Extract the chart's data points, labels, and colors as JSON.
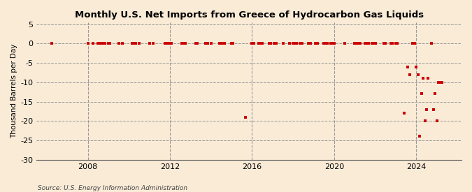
{
  "title": "Monthly U.S. Net Imports from Greece of Hydrocarbon Gas Liquids",
  "ylabel": "Thousand Barrels per Day",
  "source": "Source: U.S. Energy Information Administration",
  "background_color": "#faebd7",
  "plot_bg_color": "#faebd7",
  "marker_color": "#cc0000",
  "ylim": [
    -30,
    5
  ],
  "yticks": [
    5,
    0,
    -5,
    -10,
    -15,
    -20,
    -25,
    -30
  ],
  "xlim_start": 2005.5,
  "xlim_end": 2026.2,
  "xticks": [
    2008,
    2012,
    2016,
    2020,
    2024
  ],
  "vlines": [
    2008,
    2012,
    2016,
    2020,
    2024
  ],
  "data_points": [
    [
      2006.25,
      0
    ],
    [
      2008.0,
      0
    ],
    [
      2008.25,
      0
    ],
    [
      2008.5,
      0
    ],
    [
      2008.58,
      0
    ],
    [
      2008.67,
      0
    ],
    [
      2008.75,
      0
    ],
    [
      2008.83,
      0
    ],
    [
      2009.0,
      0
    ],
    [
      2009.08,
      0
    ],
    [
      2009.5,
      0
    ],
    [
      2009.67,
      0
    ],
    [
      2010.17,
      0
    ],
    [
      2010.25,
      0
    ],
    [
      2010.33,
      0
    ],
    [
      2010.5,
      0
    ],
    [
      2011.0,
      0
    ],
    [
      2011.17,
      0
    ],
    [
      2011.75,
      0
    ],
    [
      2011.83,
      0
    ],
    [
      2011.92,
      0
    ],
    [
      2012.0,
      0
    ],
    [
      2012.08,
      0
    ],
    [
      2012.58,
      0
    ],
    [
      2012.67,
      0
    ],
    [
      2012.75,
      0
    ],
    [
      2013.25,
      0
    ],
    [
      2013.33,
      0
    ],
    [
      2013.75,
      0
    ],
    [
      2013.83,
      0
    ],
    [
      2014.0,
      0
    ],
    [
      2014.42,
      0
    ],
    [
      2014.5,
      0
    ],
    [
      2014.58,
      0
    ],
    [
      2014.67,
      0
    ],
    [
      2015.0,
      0
    ],
    [
      2015.08,
      0
    ],
    [
      2015.67,
      -19
    ],
    [
      2016.0,
      0
    ],
    [
      2016.08,
      0
    ],
    [
      2016.33,
      0
    ],
    [
      2016.42,
      0
    ],
    [
      2016.5,
      0
    ],
    [
      2016.83,
      0
    ],
    [
      2016.92,
      0
    ],
    [
      2017.08,
      0
    ],
    [
      2017.17,
      0
    ],
    [
      2017.5,
      0
    ],
    [
      2017.83,
      0
    ],
    [
      2018.0,
      0
    ],
    [
      2018.08,
      0
    ],
    [
      2018.17,
      0
    ],
    [
      2018.33,
      0
    ],
    [
      2018.42,
      0
    ],
    [
      2018.75,
      0
    ],
    [
      2018.83,
      0
    ],
    [
      2019.08,
      0
    ],
    [
      2019.17,
      0
    ],
    [
      2019.5,
      0
    ],
    [
      2019.58,
      0
    ],
    [
      2019.67,
      0
    ],
    [
      2019.83,
      0
    ],
    [
      2019.92,
      0
    ],
    [
      2020.0,
      0
    ],
    [
      2020.5,
      0
    ],
    [
      2021.0,
      0
    ],
    [
      2021.08,
      0
    ],
    [
      2021.17,
      0
    ],
    [
      2021.25,
      0
    ],
    [
      2021.5,
      0
    ],
    [
      2021.58,
      0
    ],
    [
      2021.67,
      0
    ],
    [
      2021.83,
      0
    ],
    [
      2021.92,
      0
    ],
    [
      2022.0,
      0
    ],
    [
      2022.42,
      0
    ],
    [
      2022.5,
      0
    ],
    [
      2022.75,
      0
    ],
    [
      2022.83,
      0
    ],
    [
      2023.0,
      0
    ],
    [
      2023.08,
      0
    ],
    [
      2023.42,
      -18
    ],
    [
      2023.58,
      -6
    ],
    [
      2023.67,
      -8
    ],
    [
      2023.83,
      0
    ],
    [
      2023.92,
      0
    ],
    [
      2024.0,
      -6
    ],
    [
      2024.08,
      -8
    ],
    [
      2024.17,
      -24
    ],
    [
      2024.25,
      -13
    ],
    [
      2024.33,
      -9
    ],
    [
      2024.42,
      -20
    ],
    [
      2024.5,
      -17
    ],
    [
      2024.58,
      -9
    ],
    [
      2024.75,
      0
    ],
    [
      2024.83,
      -17
    ],
    [
      2024.92,
      -13
    ],
    [
      2025.0,
      -20
    ],
    [
      2025.08,
      -10
    ],
    [
      2025.17,
      -10
    ],
    [
      2025.25,
      -10
    ]
  ]
}
